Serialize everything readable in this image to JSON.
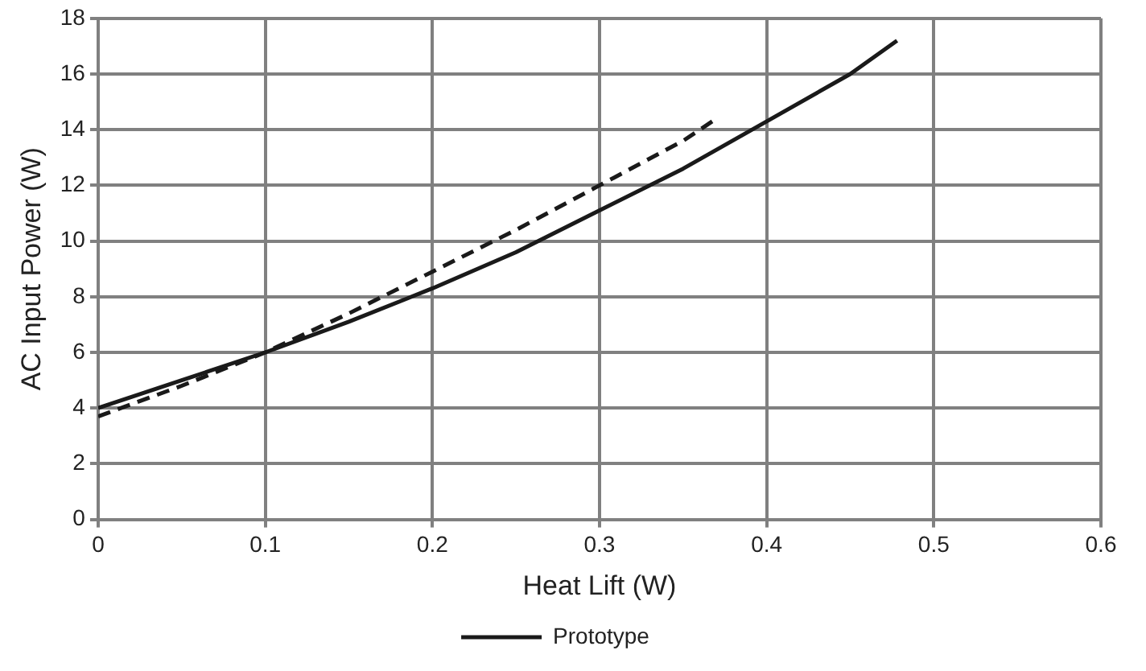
{
  "chart_data": {
    "type": "line",
    "xlabel": "Heat Lift (W)",
    "ylabel": "AC Input Power (W)",
    "xlim": [
      0,
      0.6
    ],
    "xticks": [
      0,
      0.1,
      0.2,
      0.3,
      0.4,
      0.5,
      0.6
    ],
    "ylim": [
      0,
      18
    ],
    "yticks": [
      0,
      2,
      4,
      6,
      8,
      10,
      12,
      14,
      16,
      18
    ],
    "grid": true,
    "legend": "bottom",
    "marker": "none",
    "series": [
      {
        "color": "#1a1a1a",
        "line_style": "dashed",
        "x": [
          0,
          0.05,
          0.1,
          0.15,
          0.2,
          0.25,
          0.3,
          0.35,
          0.37
        ],
        "values": [
          3.7,
          4.8,
          6.0,
          7.4,
          8.9,
          10.4,
          12.0,
          13.6,
          14.4
        ]
      },
      {
        "name": "Prototype",
        "color": "#1a1a1a",
        "line_style": "solid",
        "x": [
          0,
          0.05,
          0.1,
          0.15,
          0.2,
          0.25,
          0.3,
          0.35,
          0.4,
          0.45,
          0.478
        ],
        "values": [
          4.0,
          5.0,
          6.0,
          7.1,
          8.3,
          9.6,
          11.1,
          12.6,
          14.3,
          16.0,
          17.2
        ]
      }
    ]
  }
}
